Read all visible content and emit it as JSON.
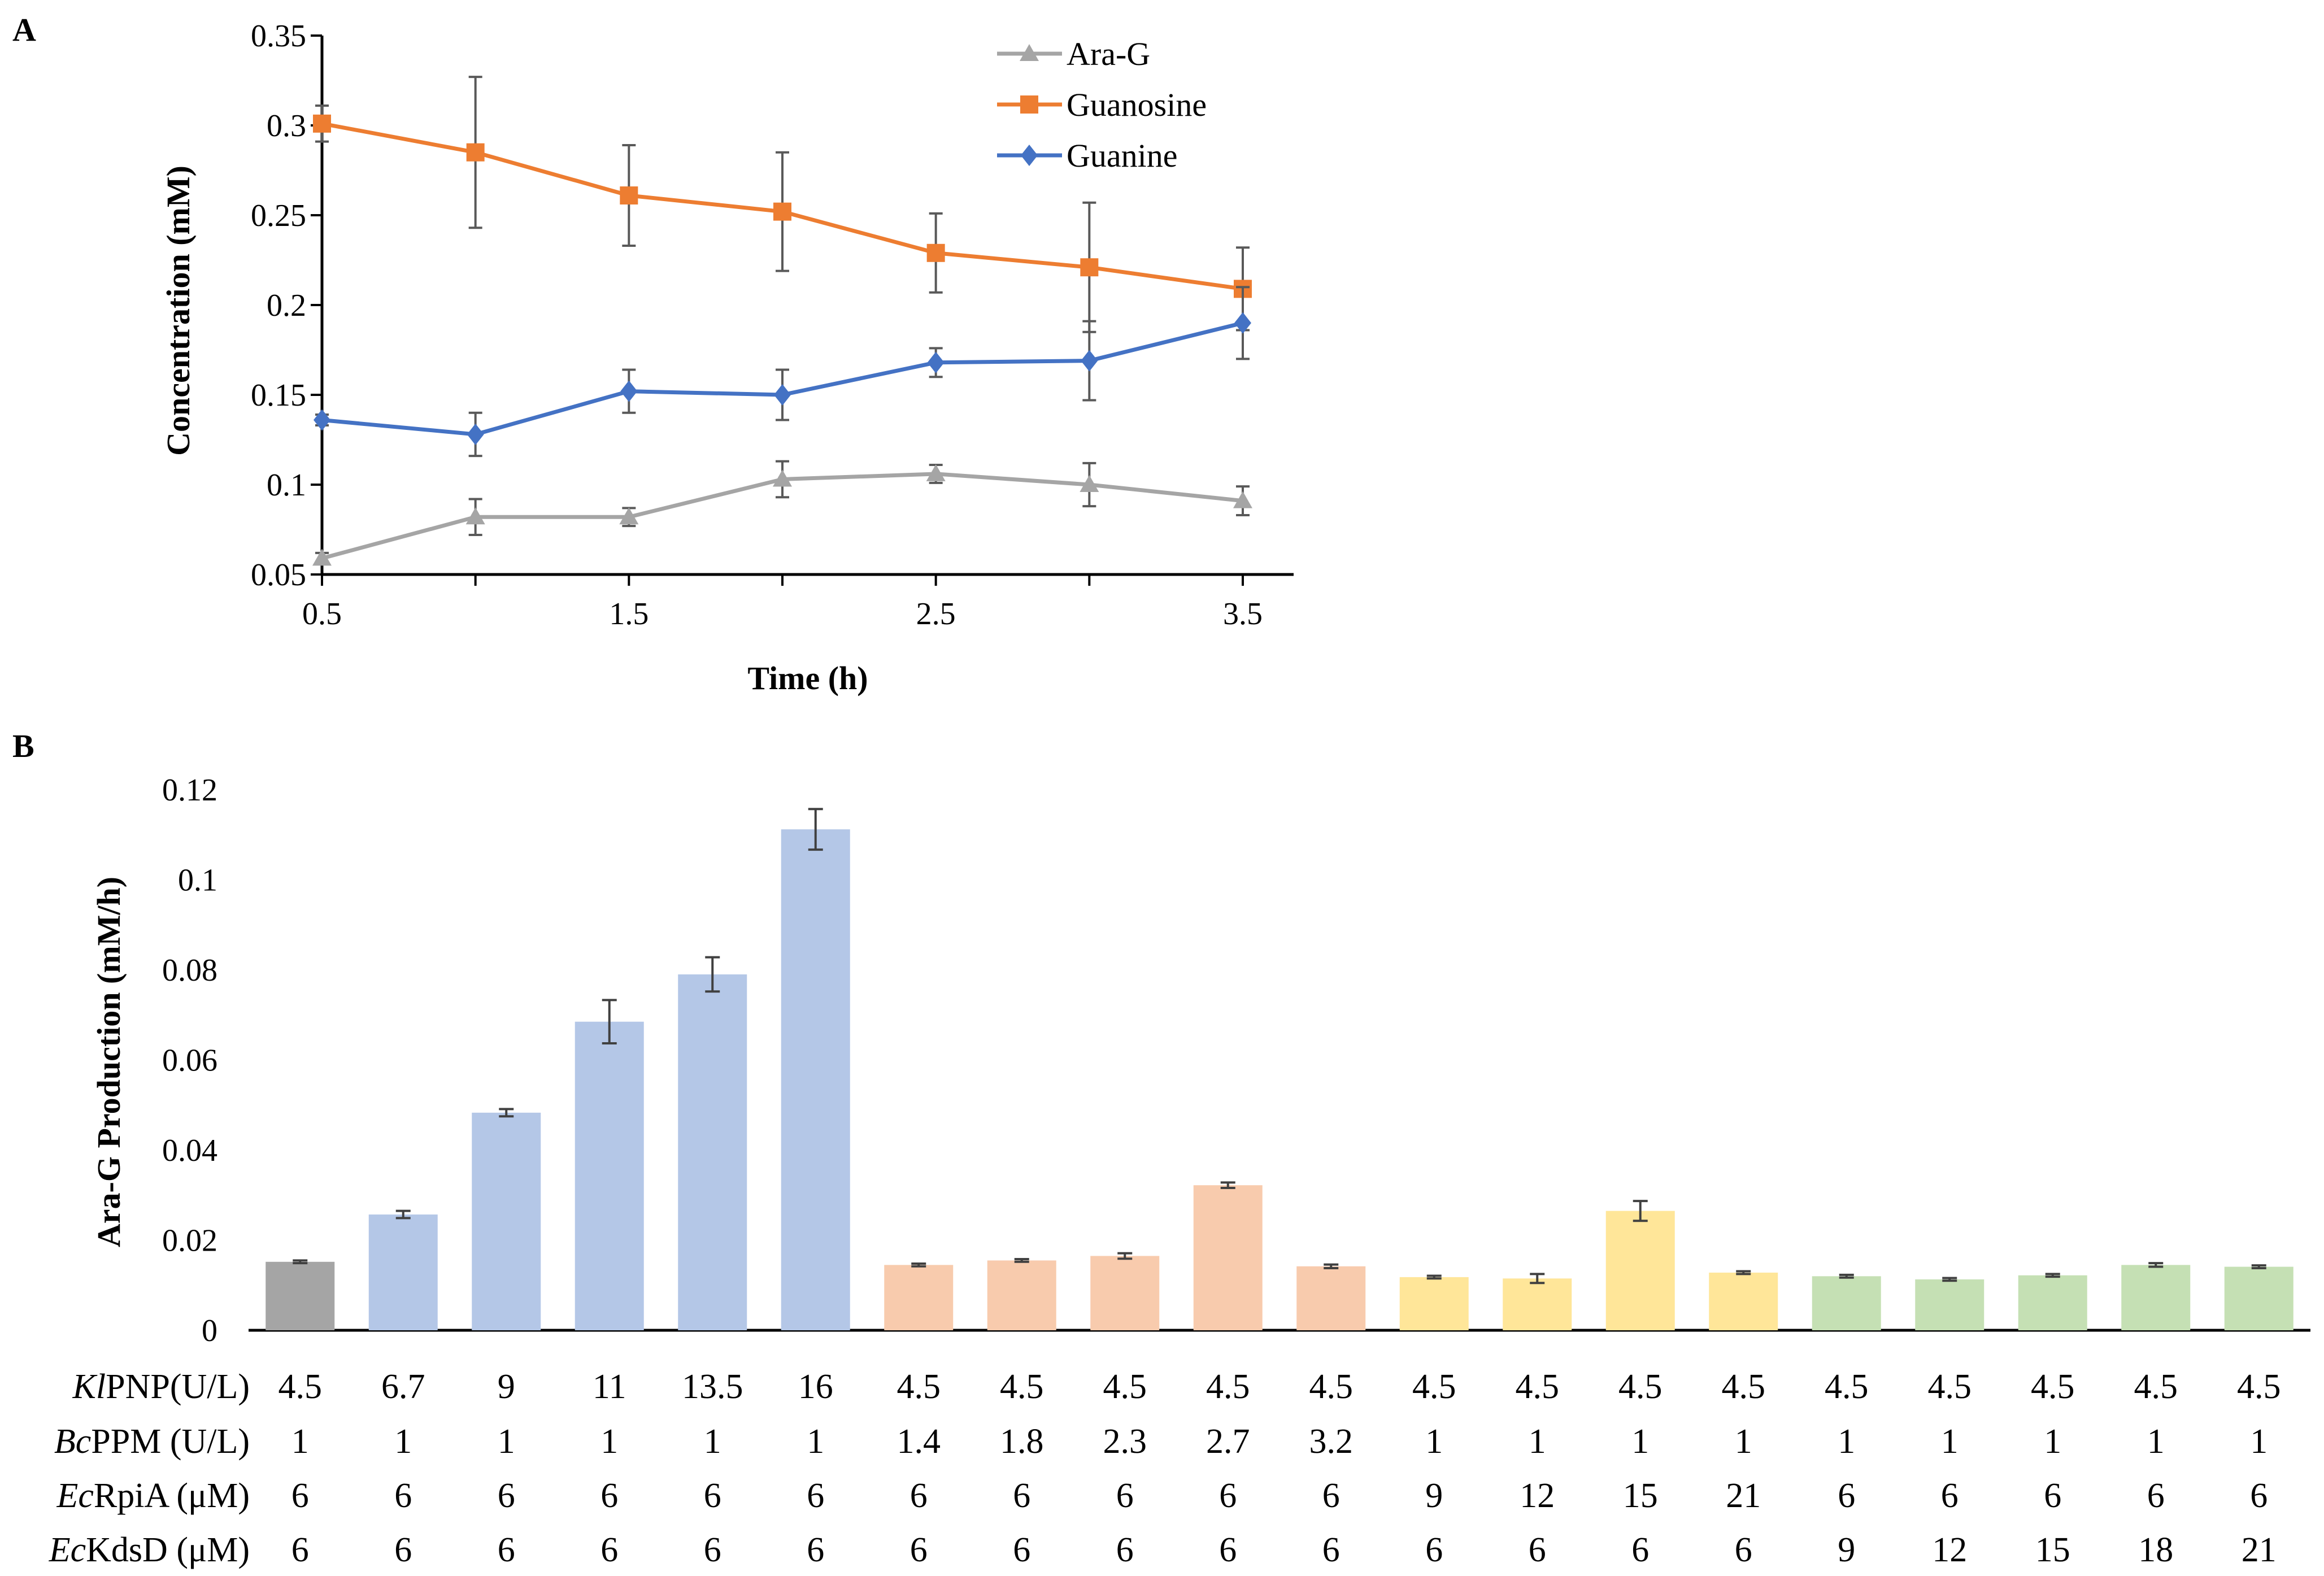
{
  "chart_data": [
    {
      "type": "line",
      "panel_label": "A",
      "xlabel": "Time (h)",
      "ylabel": "Concentration (mM)",
      "xlim": [
        0.5,
        3.5
      ],
      "ylim": [
        0.05,
        0.35
      ],
      "x_ticks": [
        "0.5",
        "1.5",
        "2.5",
        "3.5"
      ],
      "y_ticks": [
        "0.05",
        "0.1",
        "0.15",
        "0.2",
        "0.25",
        "0.3",
        "0.35"
      ],
      "legend_position": "top-right",
      "x": [
        0.5,
        1.0,
        1.5,
        2.0,
        2.5,
        3.0,
        3.5
      ],
      "series": [
        {
          "name": "Ara-G",
          "color": "#A5A5A5",
          "marker": "triangle",
          "values": [
            0.059,
            0.082,
            0.082,
            0.103,
            0.106,
            0.1,
            0.091
          ],
          "errors": [
            0.003,
            0.01,
            0.005,
            0.01,
            0.005,
            0.012,
            0.008
          ]
        },
        {
          "name": "Guanosine",
          "color": "#ED7D31",
          "marker": "square",
          "values": [
            0.301,
            0.285,
            0.261,
            0.252,
            0.229,
            0.221,
            0.209
          ],
          "errors": [
            0.01,
            0.042,
            0.028,
            0.033,
            0.022,
            0.036,
            0.023
          ]
        },
        {
          "name": "Guanine",
          "color": "#4472C4",
          "marker": "diamond",
          "values": [
            0.136,
            0.128,
            0.152,
            0.15,
            0.168,
            0.169,
            0.19
          ],
          "errors": [
            0.003,
            0.012,
            0.012,
            0.014,
            0.008,
            0.022,
            0.02
          ]
        }
      ]
    },
    {
      "type": "bar",
      "panel_label": "B",
      "ylabel": "Ara-G Production (mM/h)",
      "ylim": [
        0,
        0.12
      ],
      "y_ticks": [
        "0",
        "0.02",
        "0.04",
        "0.06",
        "0.08",
        "0.1",
        "0.12"
      ],
      "values": [
        0.0152,
        0.0257,
        0.0483,
        0.0685,
        0.079,
        0.1112,
        0.0145,
        0.0155,
        0.0165,
        0.0322,
        0.0142,
        0.0118,
        0.0115,
        0.0265,
        0.0128,
        0.012,
        0.0113,
        0.0122,
        0.0145,
        0.0141
      ],
      "errors": [
        0.0003,
        0.0008,
        0.0008,
        0.0048,
        0.0038,
        0.0045,
        0.0003,
        0.0003,
        0.0006,
        0.0006,
        0.0004,
        0.0003,
        0.001,
        0.0022,
        0.0003,
        0.0003,
        0.0003,
        0.0003,
        0.0004,
        0.0003
      ],
      "bar_colors": [
        "#A5A5A5",
        "#B4C7E7",
        "#B4C7E7",
        "#B4C7E7",
        "#B4C7E7",
        "#B4C7E7",
        "#F8CBAD",
        "#F8CBAD",
        "#F8CBAD",
        "#F8CBAD",
        "#F8CBAD",
        "#FFE699",
        "#FFE699",
        "#FFE699",
        "#FFE699",
        "#C5E0B4",
        "#C5E0B4",
        "#C5E0B4",
        "#C5E0B4",
        "#C5E0B4"
      ],
      "table": [
        {
          "label_italic": "Kl",
          "label_rest": "PNP(U/L)",
          "values": [
            "4.5",
            "6.7",
            "9",
            "11",
            "13.5",
            "16",
            "4.5",
            "4.5",
            "4.5",
            "4.5",
            "4.5",
            "4.5",
            "4.5",
            "4.5",
            "4.5",
            "4.5",
            "4.5",
            "4.5",
            "4.5",
            "4.5"
          ]
        },
        {
          "label_italic": "Bc",
          "label_rest": "PPM (U/L)",
          "values": [
            "1",
            "1",
            "1",
            "1",
            "1",
            "1",
            "1.4",
            "1.8",
            "2.3",
            "2.7",
            "3.2",
            "1",
            "1",
            "1",
            "1",
            "1",
            "1",
            "1",
            "1",
            "1"
          ]
        },
        {
          "label_italic": "Ec",
          "label_rest": "RpiA (μM)",
          "values": [
            "6",
            "6",
            "6",
            "6",
            "6",
            "6",
            "6",
            "6",
            "6",
            "6",
            "6",
            "9",
            "12",
            "15",
            "21",
            "6",
            "6",
            "6",
            "6",
            "6"
          ]
        },
        {
          "label_italic": "Ec",
          "label_rest": "KdsD (μM)",
          "values": [
            "6",
            "6",
            "6",
            "6",
            "6",
            "6",
            "6",
            "6",
            "6",
            "6",
            "6",
            "6",
            "6",
            "6",
            "6",
            "9",
            "12",
            "15",
            "18",
            "21"
          ]
        }
      ]
    }
  ]
}
